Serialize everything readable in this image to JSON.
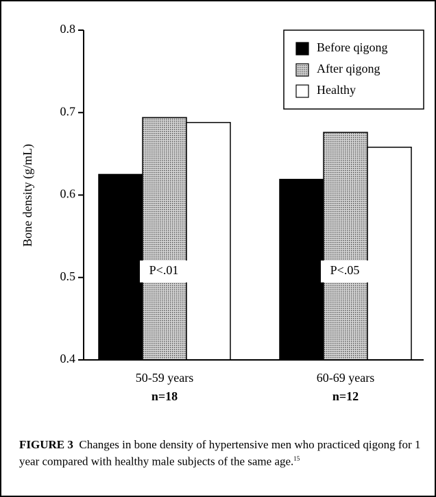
{
  "chart_data": {
    "type": "bar",
    "ylabel": "Bone density (g/mL)",
    "categories": [
      "50-59 years",
      "60-69 years"
    ],
    "category_sublabels": [
      "n=18",
      "n=12"
    ],
    "series": [
      {
        "name": "Before qigong",
        "color": "#000000",
        "values": [
          0.625,
          0.619
        ]
      },
      {
        "name": "After qigong",
        "color": "#9a9a9a",
        "values": [
          0.694,
          0.676
        ]
      },
      {
        "name": "Healthy",
        "color": "#ffffff",
        "values": [
          0.688,
          0.658
        ]
      }
    ],
    "annotations": [
      "P<.01",
      "P<.05"
    ],
    "ylim": [
      0.4,
      0.8
    ],
    "yticks": [
      0.4,
      0.5,
      0.6,
      0.7,
      0.8
    ],
    "legend": "upper right",
    "caption": {
      "label": "FIGURE 3",
      "text": "Changes in bone density of hypertensive men who practiced qigong for 1 year compared with healthy male subjects of the same age.",
      "reference": "15"
    }
  }
}
